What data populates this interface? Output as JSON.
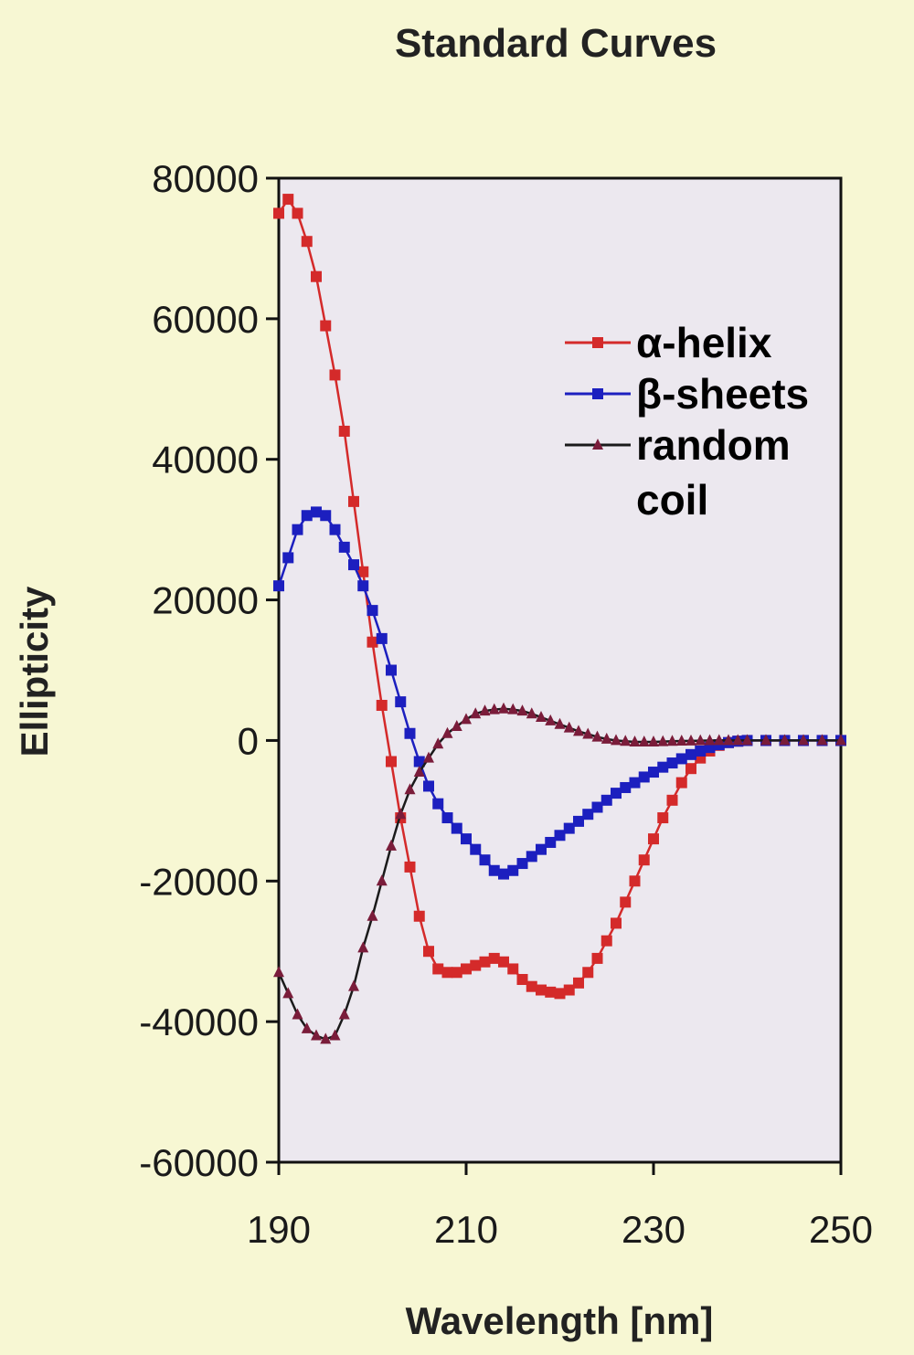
{
  "chart_data": {
    "type": "line",
    "title": "Standard Curves",
    "xlabel": "Wavelength [nm]",
    "ylabel": "Ellipticity",
    "xlim": [
      190,
      250
    ],
    "ylim": [
      -60000,
      80000
    ],
    "x_ticks": [
      "190",
      "210",
      "230",
      "250"
    ],
    "y_ticks": [
      "80000",
      "60000",
      "40000",
      "20000",
      "0",
      "-20000",
      "-40000",
      "-60000"
    ],
    "grid": false,
    "legend_position": "top-right",
    "plot_background": "#ece8ef",
    "page_background": "#f7f7d3",
    "series": [
      {
        "name": "α-helix",
        "color": "#d42a2a",
        "marker": "square",
        "x": [
          190,
          191,
          192,
          193,
          194,
          195,
          196,
          197,
          198,
          199,
          200,
          201,
          202,
          203,
          204,
          205,
          206,
          207,
          208,
          209,
          210,
          211,
          212,
          213,
          214,
          215,
          216,
          217,
          218,
          219,
          220,
          221,
          222,
          223,
          224,
          225,
          226,
          227,
          228,
          229,
          230,
          231,
          232,
          233,
          234,
          235,
          236,
          237,
          238,
          239,
          240,
          242,
          244,
          246,
          248,
          250
        ],
        "y": [
          75000,
          77000,
          75000,
          71000,
          66000,
          59000,
          52000,
          44000,
          34000,
          24000,
          14000,
          5000,
          -3000,
          -11000,
          -18000,
          -25000,
          -30000,
          -32500,
          -33000,
          -33000,
          -32500,
          -32000,
          -31500,
          -31000,
          -31500,
          -32500,
          -34000,
          -35000,
          -35500,
          -35800,
          -36000,
          -35500,
          -34500,
          -33000,
          -31000,
          -28500,
          -26000,
          -23000,
          -20000,
          -17000,
          -14000,
          -11000,
          -8500,
          -6000,
          -4000,
          -2500,
          -1500,
          -700,
          -300,
          -100,
          0,
          0,
          0,
          0,
          0,
          0
        ]
      },
      {
        "name": "β-sheets",
        "color": "#1c1fbf",
        "marker": "square",
        "x": [
          190,
          191,
          192,
          193,
          194,
          195,
          196,
          197,
          198,
          199,
          200,
          201,
          202,
          203,
          204,
          205,
          206,
          207,
          208,
          209,
          210,
          211,
          212,
          213,
          214,
          215,
          216,
          217,
          218,
          219,
          220,
          221,
          222,
          223,
          224,
          225,
          226,
          227,
          228,
          229,
          230,
          231,
          232,
          233,
          234,
          235,
          236,
          237,
          238,
          239,
          240,
          242,
          244,
          246,
          248,
          250
        ],
        "y": [
          22000,
          26000,
          30000,
          32000,
          32500,
          32000,
          30000,
          27500,
          25000,
          22000,
          18500,
          14500,
          10000,
          5500,
          1000,
          -3000,
          -6500,
          -9000,
          -11000,
          -12500,
          -14000,
          -15500,
          -17000,
          -18500,
          -19000,
          -18500,
          -17500,
          -16500,
          -15500,
          -14500,
          -13500,
          -12500,
          -11500,
          -10500,
          -9500,
          -8500,
          -7500,
          -6700,
          -6000,
          -5200,
          -4500,
          -3800,
          -3200,
          -2600,
          -2000,
          -1500,
          -1000,
          -600,
          -300,
          -100,
          0,
          0,
          0,
          0,
          0,
          0
        ]
      },
      {
        "name": "random coil",
        "color": "#7a1c3a",
        "marker": "triangle",
        "x": [
          190,
          191,
          192,
          193,
          194,
          195,
          196,
          197,
          198,
          199,
          200,
          201,
          202,
          203,
          204,
          205,
          206,
          207,
          208,
          209,
          210,
          211,
          212,
          213,
          214,
          215,
          216,
          217,
          218,
          219,
          220,
          221,
          222,
          223,
          224,
          225,
          226,
          227,
          228,
          229,
          230,
          231,
          232,
          233,
          234,
          235,
          236,
          237,
          238,
          239,
          240,
          242,
          244,
          246,
          248,
          250
        ],
        "y": [
          -33000,
          -36000,
          -39000,
          -41000,
          -42000,
          -42500,
          -42000,
          -39000,
          -35000,
          -29500,
          -25000,
          -20000,
          -15000,
          -10500,
          -7000,
          -4500,
          -2500,
          -500,
          1000,
          2000,
          3000,
          3800,
          4200,
          4400,
          4500,
          4400,
          4200,
          3800,
          3300,
          2800,
          2300,
          1800,
          1300,
          900,
          500,
          200,
          0,
          -100,
          -200,
          -200,
          -200,
          -150,
          -100,
          -80,
          -50,
          -30,
          -10,
          0,
          0,
          0,
          0,
          0,
          0,
          0,
          0,
          0
        ]
      }
    ]
  }
}
